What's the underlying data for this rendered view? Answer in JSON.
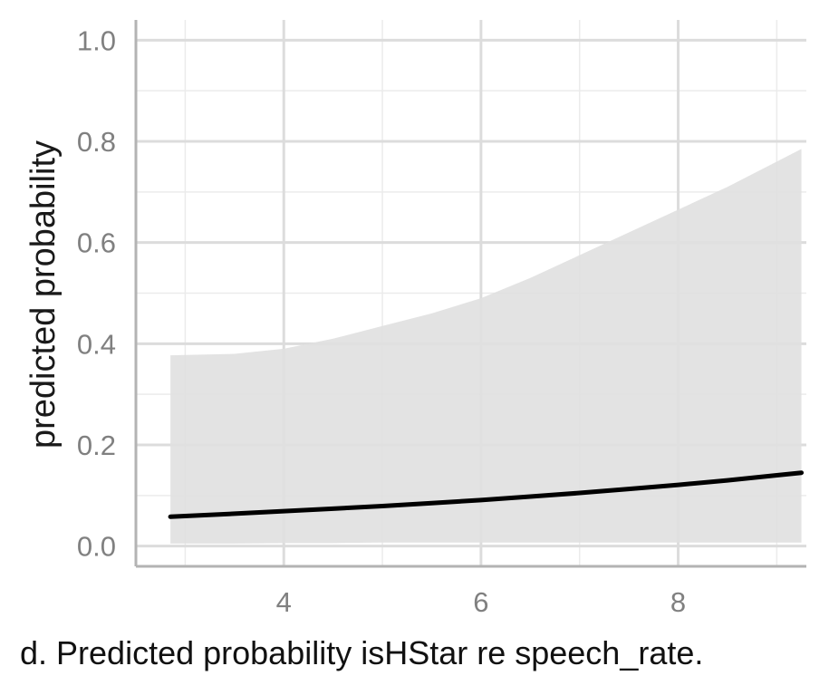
{
  "chart_data": {
    "type": "line",
    "ylabel": "predicted probability",
    "xlabel": "",
    "xlim": [
      2.5,
      9.3
    ],
    "ylim": [
      -0.04,
      1.04
    ],
    "x_ticks": [
      4,
      6,
      8
    ],
    "x_tick_labels": [
      "4",
      "6",
      "8"
    ],
    "y_ticks": [
      0.0,
      0.2,
      0.4,
      0.6,
      0.8,
      1.0
    ],
    "y_tick_labels": [
      "0.0",
      "0.2",
      "0.4",
      "0.6",
      "0.8",
      "1.0"
    ],
    "grid": true,
    "series": [
      {
        "x": [
          2.85,
          3.5,
          4.0,
          4.5,
          5.0,
          5.5,
          6.0,
          6.5,
          7.0,
          7.5,
          8.0,
          8.5,
          9.0,
          9.25
        ],
        "y": [
          0.058,
          0.064,
          0.069,
          0.074,
          0.079,
          0.085,
          0.091,
          0.098,
          0.105,
          0.113,
          0.121,
          0.13,
          0.14,
          0.145
        ],
        "lower": [
          0.005,
          0.005,
          0.006,
          0.006,
          0.007,
          0.007,
          0.007,
          0.007,
          0.007,
          0.007,
          0.007,
          0.007,
          0.007,
          0.007
        ],
        "upper": [
          0.377,
          0.38,
          0.39,
          0.41,
          0.435,
          0.46,
          0.49,
          0.53,
          0.575,
          0.62,
          0.665,
          0.71,
          0.76,
          0.785
        ],
        "color": "#000000",
        "ribbon_color": "#e0e0e0"
      }
    ]
  },
  "caption": "d. Predicted probability isHStar re speech_rate."
}
